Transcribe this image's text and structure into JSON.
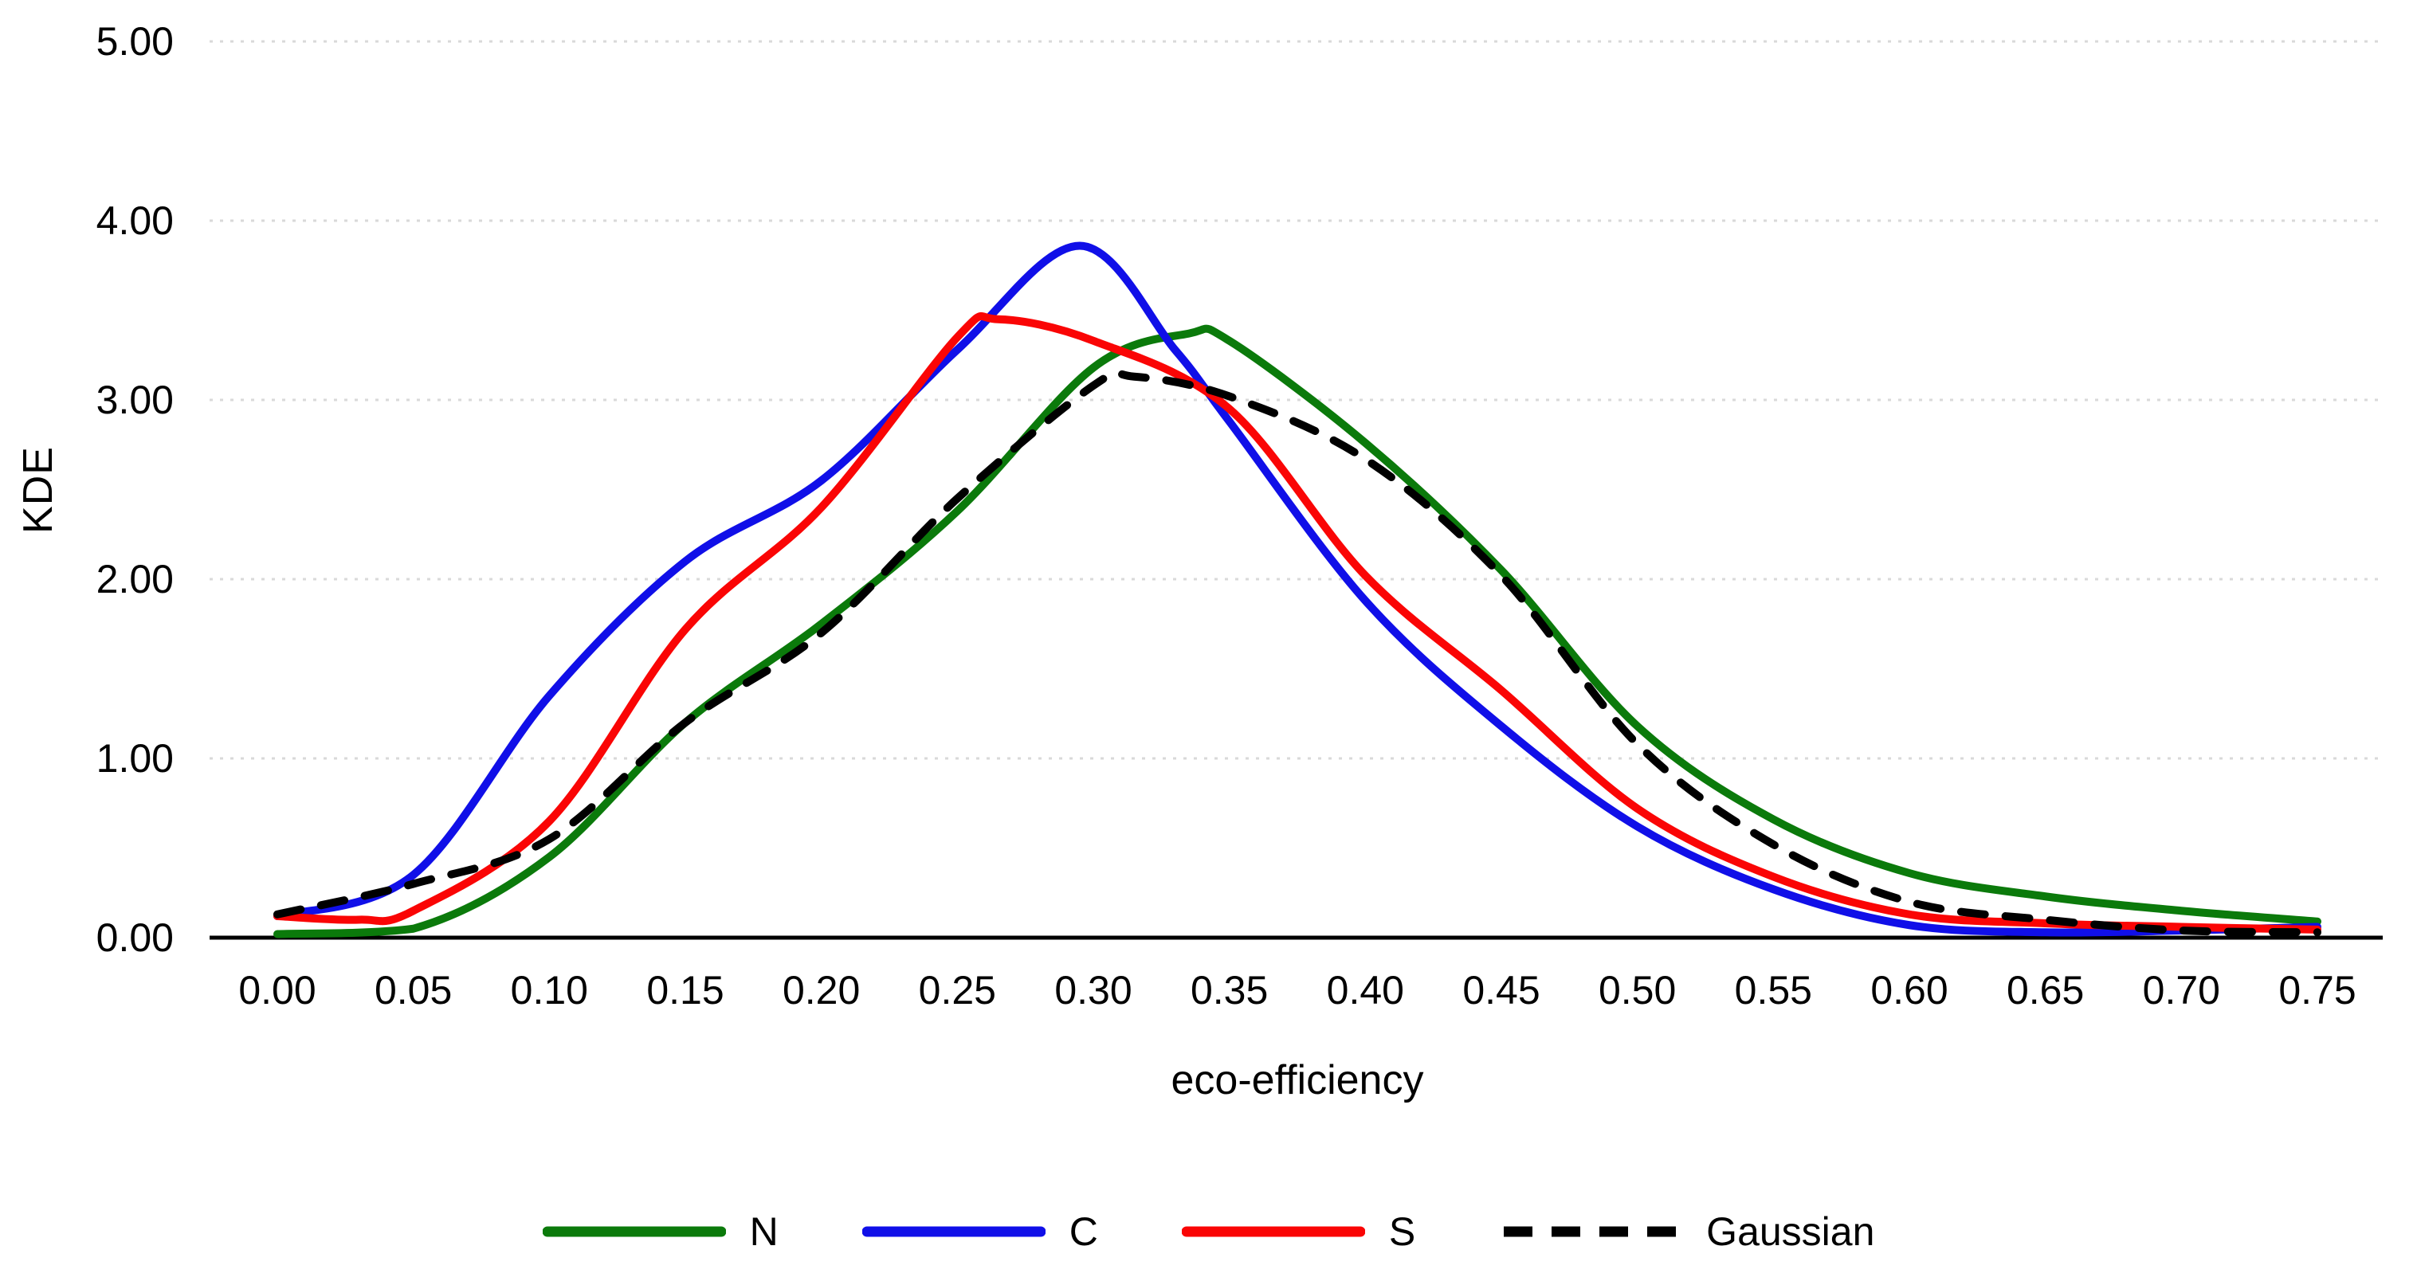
{
  "chart_data": {
    "type": "line",
    "title": "",
    "xlabel": "eco-efficiency",
    "ylabel": "KDE",
    "xlim": [
      0.0,
      0.75
    ],
    "ylim": [
      0.0,
      5.0
    ],
    "x_tick_labels": [
      "0.00",
      "0.05",
      "0.10",
      "0.15",
      "0.20",
      "0.25",
      "0.30",
      "0.35",
      "0.40",
      "0.45",
      "0.50",
      "0.55",
      "0.60",
      "0.65",
      "0.70",
      "0.75"
    ],
    "y_tick_labels": [
      "0.00",
      "1.00",
      "2.00",
      "3.00",
      "4.00",
      "5.00"
    ],
    "grid": "horizontal dotted gridlines at each y tick",
    "legend_position": "bottom-center",
    "axis_color": "#000000",
    "gridline_color": "#d9d9d9",
    "series": [
      {
        "name": "N",
        "color": "#0b7a0b",
        "line_style": "solid",
        "points": [
          [
            0.0,
            0.02
          ],
          [
            0.05,
            0.05
          ],
          [
            0.1,
            0.45
          ],
          [
            0.15,
            1.2
          ],
          [
            0.2,
            1.75
          ],
          [
            0.25,
            2.38
          ],
          [
            0.3,
            3.18
          ],
          [
            0.335,
            3.37
          ],
          [
            0.35,
            3.33
          ],
          [
            0.4,
            2.76
          ],
          [
            0.45,
            2.05
          ],
          [
            0.5,
            1.18
          ],
          [
            0.55,
            0.66
          ],
          [
            0.6,
            0.36
          ],
          [
            0.65,
            0.23
          ],
          [
            0.7,
            0.15
          ],
          [
            0.75,
            0.09
          ]
        ]
      },
      {
        "name": "C",
        "color": "#100fe8",
        "line_style": "solid",
        "points": [
          [
            0.0,
            0.12
          ],
          [
            0.05,
            0.35
          ],
          [
            0.1,
            1.35
          ],
          [
            0.15,
            2.1
          ],
          [
            0.2,
            2.55
          ],
          [
            0.25,
            3.28
          ],
          [
            0.295,
            3.86
          ],
          [
            0.33,
            3.28
          ],
          [
            0.35,
            2.88
          ],
          [
            0.4,
            1.88
          ],
          [
            0.45,
            1.18
          ],
          [
            0.5,
            0.62
          ],
          [
            0.55,
            0.27
          ],
          [
            0.6,
            0.07
          ],
          [
            0.65,
            0.03
          ],
          [
            0.7,
            0.04
          ],
          [
            0.75,
            0.06
          ]
        ]
      },
      {
        "name": "S",
        "color": "#fa0505",
        "line_style": "solid",
        "points": [
          [
            0.0,
            0.12
          ],
          [
            0.03,
            0.1
          ],
          [
            0.05,
            0.15
          ],
          [
            0.1,
            0.65
          ],
          [
            0.15,
            1.72
          ],
          [
            0.2,
            2.4
          ],
          [
            0.25,
            3.35
          ],
          [
            0.265,
            3.45
          ],
          [
            0.3,
            3.33
          ],
          [
            0.35,
            2.95
          ],
          [
            0.4,
            2.02
          ],
          [
            0.45,
            1.38
          ],
          [
            0.5,
            0.72
          ],
          [
            0.55,
            0.34
          ],
          [
            0.6,
            0.13
          ],
          [
            0.65,
            0.08
          ],
          [
            0.7,
            0.06
          ],
          [
            0.75,
            0.045
          ]
        ]
      },
      {
        "name": "Gaussian",
        "color": "#000000",
        "line_style": "dashed",
        "points": [
          [
            0.0,
            0.13
          ],
          [
            0.05,
            0.3
          ],
          [
            0.1,
            0.55
          ],
          [
            0.15,
            1.2
          ],
          [
            0.2,
            1.7
          ],
          [
            0.25,
            2.45
          ],
          [
            0.3,
            3.08
          ],
          [
            0.315,
            3.13
          ],
          [
            0.35,
            3.02
          ],
          [
            0.4,
            2.67
          ],
          [
            0.45,
            2.02
          ],
          [
            0.5,
            1.08
          ],
          [
            0.55,
            0.52
          ],
          [
            0.6,
            0.2
          ],
          [
            0.65,
            0.1
          ],
          [
            0.7,
            0.04
          ],
          [
            0.75,
            0.03
          ]
        ]
      }
    ]
  }
}
